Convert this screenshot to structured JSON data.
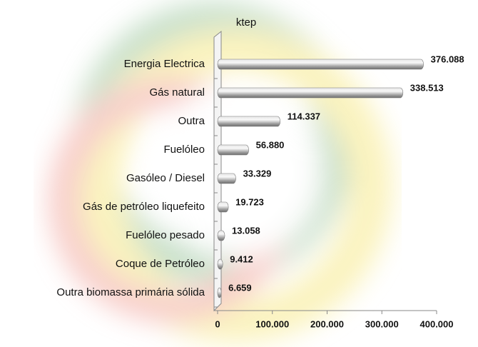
{
  "chart_data": {
    "type": "hbar",
    "title": "ktep",
    "categories": [
      "Energia Electrica",
      "Gás natural",
      "Outra",
      "Fuelóleo",
      "Gasóleo / Diesel",
      "Gás de petróleo liquefeito",
      "Fuelóleo pesado",
      "Coque de Petróleo",
      "Outra biomassa primária sólida"
    ],
    "values": [
      376088,
      338513,
      114337,
      56880,
      33329,
      19723,
      13058,
      9412,
      6659
    ],
    "value_labels": [
      "376.088",
      "338.513",
      "114.337",
      "56.880",
      "33.329",
      "19.723",
      "13.058",
      "9.412",
      "6.659"
    ],
    "color": "#9a9a9a",
    "xlim": [
      0,
      400000
    ],
    "xticks": [
      0,
      {
        "value": 100000,
        "label": "100.000"
      },
      {
        "value": 200000,
        "label": "200.000"
      },
      {
        "value": 300000,
        "label": "300.000"
      },
      {
        "value": 400000,
        "label": "400.000"
      }
    ]
  }
}
